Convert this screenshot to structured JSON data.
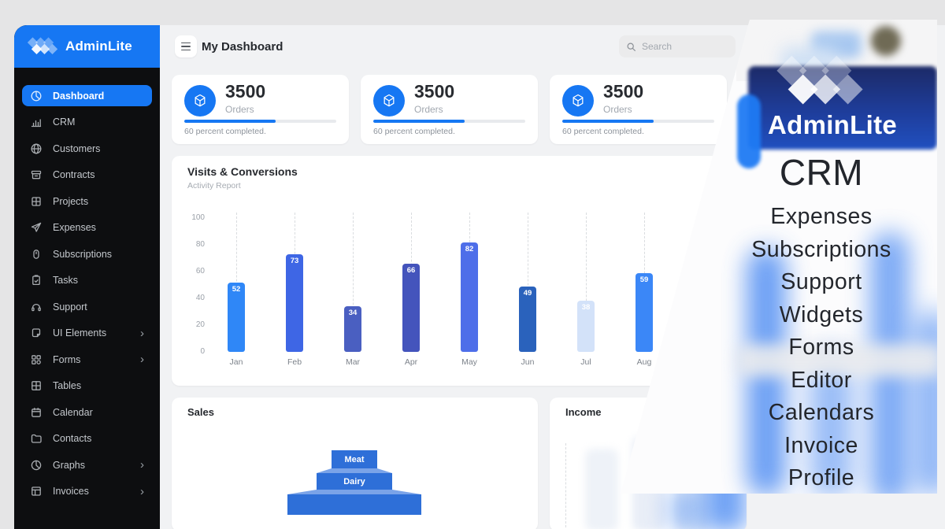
{
  "brand": {
    "name": "AdminLite"
  },
  "header": {
    "title": "My Dashboard",
    "search_placeholder": "Search"
  },
  "sidebar": {
    "items": [
      {
        "label": "Dashboard",
        "icon": "dashboard-icon",
        "active": true,
        "chevron": false
      },
      {
        "label": "CRM",
        "icon": "crm-bars-icon",
        "active": false,
        "chevron": false
      },
      {
        "label": "Customers",
        "icon": "globe-icon",
        "active": false,
        "chevron": false
      },
      {
        "label": "Contracts",
        "icon": "archive-icon",
        "active": false,
        "chevron": false
      },
      {
        "label": "Projects",
        "icon": "window-grid-icon",
        "active": false,
        "chevron": false
      },
      {
        "label": "Expenses",
        "icon": "paper-plane-icon",
        "active": false,
        "chevron": false
      },
      {
        "label": "Subscriptions",
        "icon": "mouse-icon",
        "active": false,
        "chevron": false
      },
      {
        "label": "Tasks",
        "icon": "clipboard-check-icon",
        "active": false,
        "chevron": false
      },
      {
        "label": "Support",
        "icon": "headset-icon",
        "active": false,
        "chevron": false
      },
      {
        "label": "UI Elements",
        "icon": "note-icon",
        "active": false,
        "chevron": true
      },
      {
        "label": "Forms",
        "icon": "forms-grid-icon",
        "active": false,
        "chevron": true
      },
      {
        "label": "Tables",
        "icon": "table-grid-icon",
        "active": false,
        "chevron": false
      },
      {
        "label": "Calendar",
        "icon": "calendar-icon",
        "active": false,
        "chevron": false
      },
      {
        "label": "Contacts",
        "icon": "folder-icon",
        "active": false,
        "chevron": false
      },
      {
        "label": "Graphs",
        "icon": "pie-chart-icon",
        "active": false,
        "chevron": true
      },
      {
        "label": "Invoices",
        "icon": "invoice-table-icon",
        "active": false,
        "chevron": true
      }
    ]
  },
  "stat_cards": [
    {
      "value": "3500",
      "label": "Orders",
      "progress_percent": 60,
      "caption": "60 percent completed."
    },
    {
      "value": "3500",
      "label": "Orders",
      "progress_percent": 60,
      "caption": "60 percent completed."
    },
    {
      "value": "3500",
      "label": "Orders",
      "progress_percent": 60,
      "caption": "60 percent completed."
    }
  ],
  "chart_card": {
    "title": "Visits & Conversions",
    "subtitle": "Activity Report"
  },
  "chart_data": {
    "type": "bar",
    "title": "Visits & Conversions",
    "subtitle": "Activity Report",
    "categories": [
      "Jan",
      "Feb",
      "Mar",
      "Apr",
      "May",
      "Jun",
      "Jul",
      "Aug"
    ],
    "values": [
      52,
      73,
      34,
      66,
      82,
      49,
      38,
      59
    ],
    "bar_colors": [
      "#2F87F7",
      "#3E66E5",
      "#4A5FC1",
      "#4454BC",
      "#4E6EE9",
      "#2A62BC",
      "#D3E2F9",
      "#3B87F7"
    ],
    "ylim": [
      0,
      100
    ],
    "yticks": [
      0,
      20,
      40,
      60,
      80,
      100
    ],
    "grid": "vertical-dashed",
    "value_labels": true,
    "legend": false
  },
  "sales_card": {
    "title": "Sales",
    "funnel": {
      "type": "pyramid",
      "levels": [
        {
          "label": "Meat"
        },
        {
          "label": "Dairy"
        },
        {
          "label": ""
        }
      ]
    }
  },
  "income_card": {
    "title": "Income"
  },
  "overlay": {
    "brand": "AdminLite",
    "menu_items": [
      "CRM",
      "Expenses",
      "Subscriptions",
      "Support",
      "Widgets",
      "Forms",
      "Editor",
      "Calendars",
      "Invoice",
      "Profile"
    ]
  },
  "colors": {
    "accent": "#1677F3",
    "sidebar_bg": "#0D0E10",
    "page_bg": "#E5E5E6",
    "card_bg": "#FFFFFF",
    "banner_bg": "#1E3D9B"
  }
}
